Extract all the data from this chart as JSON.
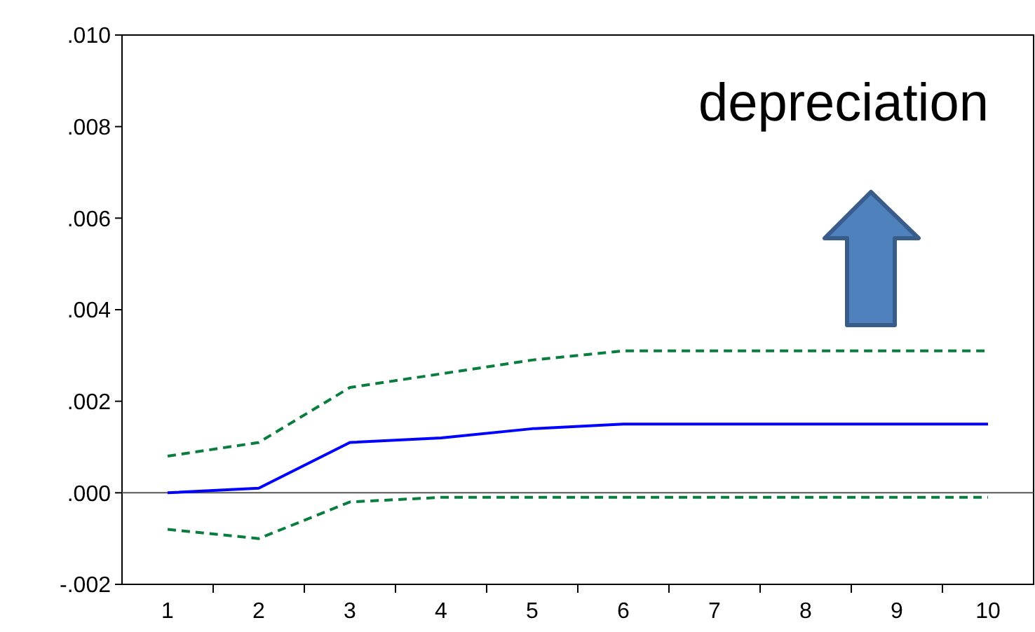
{
  "chart_data": {
    "type": "line",
    "categories": [
      "1",
      "2",
      "3",
      "4",
      "5",
      "6",
      "7",
      "8",
      "9",
      "10"
    ],
    "series": [
      {
        "color": "#0000ff",
        "line_style": "solid",
        "values": [
          0,
          0.0001,
          0.0011,
          0.0012,
          0.0014,
          0.0015,
          0.0015,
          0.0015,
          0.0015,
          0.0015
        ]
      },
      {
        "color": "#0a7d3e",
        "line_style": "dashed",
        "values": [
          0.0008,
          0.0011,
          0.0023,
          0.0026,
          0.0029,
          0.0031,
          0.0031,
          0.0031,
          0.0031,
          0.0031
        ]
      },
      {
        "color": "#0a7d3e",
        "line_style": "dashed",
        "values": [
          -0.0008,
          -0.001,
          -0.0002,
          -0.0001,
          -0.0001,
          -0.0001,
          -0.0001,
          -0.0001,
          -0.0001,
          -0.0001
        ]
      }
    ],
    "ylim": [
      -0.002,
      0.01
    ],
    "yticks": [
      {
        "value": -0.002,
        "label": "-.002"
      },
      {
        "value": 0,
        "label": ".000"
      },
      {
        "value": 0.002,
        "label": ".002"
      },
      {
        "value": 0.004,
        "label": ".004"
      },
      {
        "value": 0.006,
        "label": ".006"
      },
      {
        "value": 0.008,
        "label": ".008"
      },
      {
        "value": 0.01,
        "label": ".010"
      }
    ],
    "ref_lines": [
      {
        "axis": "y",
        "value": 0,
        "color": "#555555"
      }
    ],
    "annotations": [
      "depreciation"
    ],
    "grid": false
  }
}
